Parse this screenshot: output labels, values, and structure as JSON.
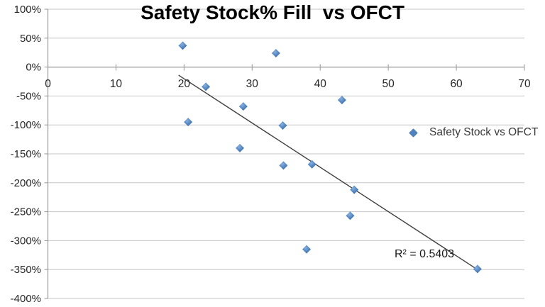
{
  "chart_data": {
    "type": "scatter",
    "title": "Safety Stock% Fill  vs OFCT",
    "annotation": "R² = 0.5403",
    "r_squared": 0.5403,
    "grid": true,
    "legend_position": "right-middle",
    "x_axis": {
      "min": 0,
      "max": 70,
      "tick_interval": 10,
      "ticks": [
        0,
        10,
        20,
        30,
        40,
        50,
        60,
        70
      ]
    },
    "y_axis": {
      "min": -400,
      "max": 100,
      "tick_interval": 50,
      "tick_labels": [
        "100%",
        "50%",
        "0%",
        "-50%",
        "-100%",
        "-150%",
        "-200%",
        "-250%",
        "-300%",
        "-350%",
        "-400%"
      ]
    },
    "series": [
      {
        "name": "Safety Stock vs OFCT",
        "marker": "diamond",
        "points": [
          [
            19.8,
            37
          ],
          [
            23.2,
            -34
          ],
          [
            20.6,
            -95
          ],
          [
            28.7,
            -68
          ],
          [
            28.2,
            -140
          ],
          [
            33.5,
            24
          ],
          [
            34.5,
            -101
          ],
          [
            43.2,
            -57
          ],
          [
            34.6,
            -170
          ],
          [
            38.8,
            -168
          ],
          [
            45.0,
            -212
          ],
          [
            44.4,
            -257
          ],
          [
            38.0,
            -315
          ],
          [
            63.1,
            -349
          ]
        ]
      }
    ],
    "trendline": {
      "x1": 19.2,
      "y1": -14,
      "x2": 63.1,
      "y2": -350
    }
  },
  "colors": {
    "marker": "#4f81bd",
    "marker_light": "#86b0de",
    "marker_dark": "#3e6699",
    "gridline": "#c6c6c6",
    "axis": "#999999",
    "trendline": "#3f3f3f",
    "tick_text": "#262626",
    "title_text": "#000000"
  }
}
